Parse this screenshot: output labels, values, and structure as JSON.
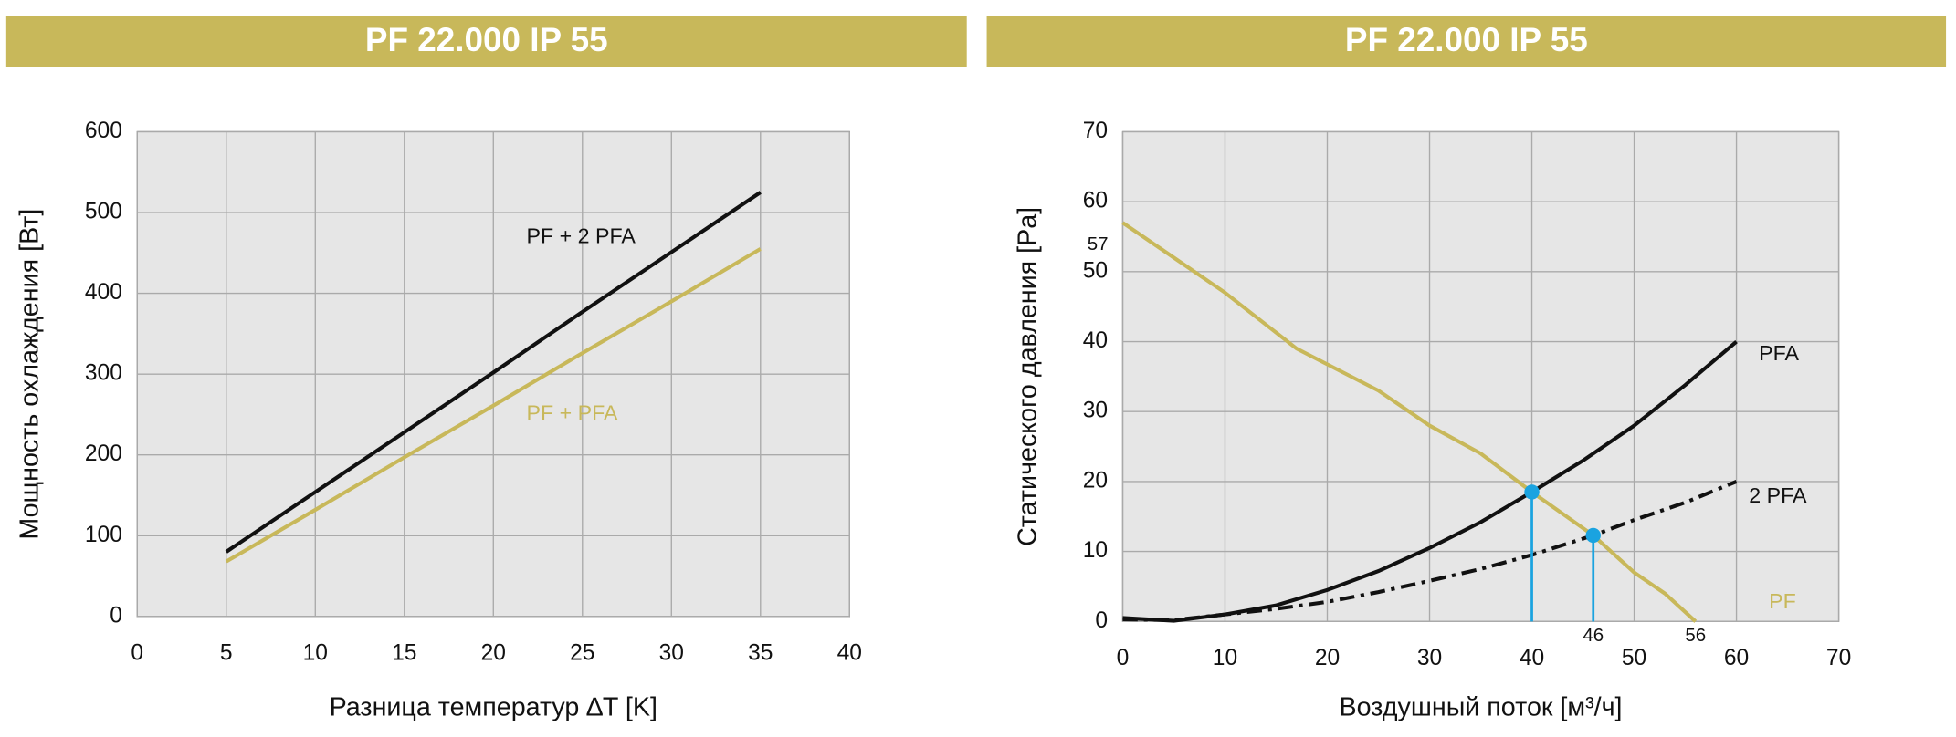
{
  "chart_data": [
    {
      "type": "line",
      "title": "PF 22.000 IP 55",
      "x_label": "Разница температур ∆T [K]",
      "y_label": "Мощность охлаждения [Вт]",
      "xlim": [
        0,
        40
      ],
      "xticks": [
        0,
        5,
        10,
        15,
        20,
        25,
        30,
        35,
        40
      ],
      "ylim": [
        0,
        600
      ],
      "yticks": [
        0,
        100,
        200,
        300,
        400,
        500,
        600
      ],
      "grid": true,
      "series": [
        {
          "name": "PF + 2 PFA",
          "color": "#111111",
          "x": [
            5,
            10,
            15,
            20,
            25,
            30,
            35
          ],
          "values": [
            80,
            154,
            228,
            302,
            377,
            451,
            525
          ]
        },
        {
          "name": "PF + PFA",
          "color": "#c8b85a",
          "x": [
            5,
            10,
            15,
            20,
            25,
            30,
            35
          ],
          "values": [
            68,
            132,
            197,
            261,
            326,
            390,
            455
          ]
        }
      ]
    },
    {
      "type": "line",
      "title": "PF 22.000 IP 55",
      "x_label": "Воздушный поток [м³/ч]",
      "y_label": "Статического давления [Pa]",
      "xlim": [
        0,
        70
      ],
      "xticks": [
        0,
        10,
        20,
        30,
        40,
        50,
        60,
        70
      ],
      "ylim": [
        0,
        70
      ],
      "yticks": [
        0,
        10,
        20,
        30,
        40,
        50,
        60,
        70
      ],
      "grid": true,
      "series": [
        {
          "name": "PFA",
          "color": "#111111",
          "dash": "solid",
          "x": [
            0,
            5,
            10,
            15,
            20,
            25,
            30,
            35,
            40,
            45,
            50,
            55,
            60
          ],
          "values": [
            0.5,
            0.1,
            1,
            2.3,
            4.5,
            7.2,
            10.5,
            14.2,
            18.5,
            23,
            28,
            33.8,
            40
          ]
        },
        {
          "name": "2 PFA",
          "color": "#111111",
          "dash": "dashdot",
          "x": [
            0,
            5,
            10,
            15,
            20,
            25,
            30,
            35,
            40,
            46,
            50,
            55,
            60
          ],
          "values": [
            0.3,
            0.2,
            1,
            1.8,
            2.8,
            4.2,
            5.8,
            7.5,
            9.5,
            12.3,
            14.5,
            17,
            20
          ]
        },
        {
          "name": "PF",
          "color": "#c8b85a",
          "dash": "solid",
          "x": [
            0,
            5,
            10,
            17,
            25,
            30,
            35,
            40,
            46,
            50,
            53,
            56
          ],
          "values": [
            57,
            52,
            47,
            39,
            33,
            28,
            24,
            18.5,
            12.3,
            7,
            4,
            0
          ]
        }
      ],
      "markers": {
        "color": "#1aa3e0",
        "x": [
          40,
          46
        ],
        "values": [
          18.5,
          12.3
        ]
      },
      "annotations": [
        {
          "label": "57",
          "x": 0,
          "y": 57
        },
        {
          "label": "46",
          "x": 46,
          "y": 0
        },
        {
          "label": "56",
          "x": 56,
          "y": 0
        }
      ]
    }
  ]
}
